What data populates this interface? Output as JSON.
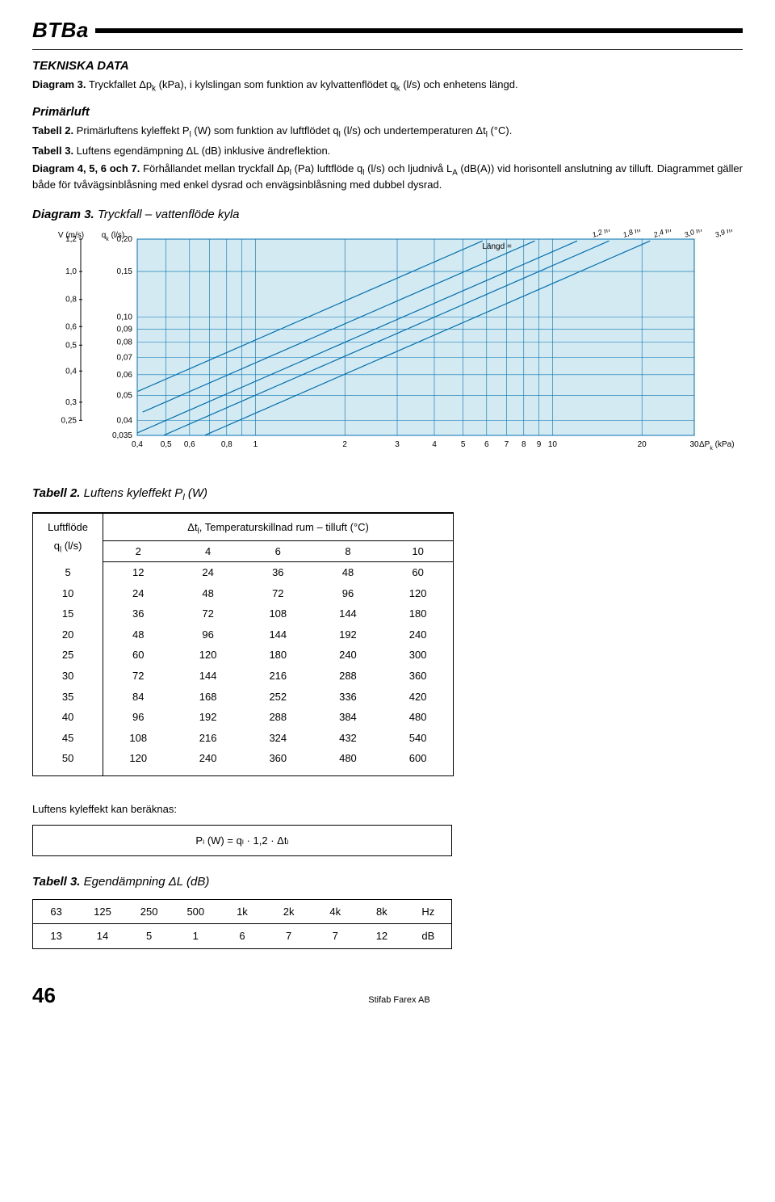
{
  "doc_title": "BTBa",
  "section_technical": "TEKNISKA DATA",
  "para_diagram3": "Diagram 3.",
  "para_diagram3_text": " Tryckfallet Δp",
  "para_diagram3_sub1": "k",
  "para_diagram3_text2": " (kPa), i kylslingan som funktion av kylvattenflödet q",
  "para_diagram3_sub2": "k",
  "para_diagram3_text3": " (l/s) och enhetens längd.",
  "primarluft": "Primärluft",
  "tab2label": "Tabell 2.",
  "tab2text": " Primärluftens kyleffekt P",
  "tab2sub": "l",
  "tab2text2": " (W) som funktion av luftflödet q",
  "tab2sub2": "l",
  "tab2text3": " (l/s) och undertemperaturen Δt",
  "tab2sub3": "l",
  "tab2text4": " (°C).",
  "tab3label": "Tabell 3.",
  "tab3text": " Luftens egendämpning ΔL (dB) inklusive änd­reflektion.",
  "diag4567label": "Diagram 4, 5, 6 och 7.",
  "diag4567text": " Förhållandet mellan tryckfall Δp",
  "diag4567sub1": "l",
  "diag4567text2": " (Pa) luftflöde q",
  "diag4567sub2": "l",
  "diag4567text3": " (l/s) och ljudnivå L",
  "diag4567sub3": "A",
  "diag4567text4": " (dB(A)) vid horisontell anslut­ning av tilluft. Diagrammet gäller både för tvåvägsinblåsning med enkel dysrad och envägsinblåsning med dubbel dysrad.",
  "chart": {
    "title_label": "Diagram 3.",
    "title_text": " Tryckfall – vattenflöde kyla",
    "y1_label": "V (m/s)",
    "y2_label": "q",
    "y2_sub": "k",
    "y2_unit": " (l/s)",
    "length_label": "Längd =",
    "x_axis_right_label": "ΔP",
    "x_axis_right_sub": "k",
    "x_axis_right_unit": " (kPa)",
    "y1_ticks": [
      "1,2",
      "1,0",
      "0,8",
      "0,6",
      "0,5",
      "0,4",
      "0,3",
      "0,25"
    ],
    "y2_ticks": [
      "0,20",
      "0,15",
      "0,10",
      "0,09",
      "0,08",
      "0,07",
      "0,06",
      "0,05",
      "0,04",
      "0,035"
    ],
    "x_ticks": [
      "0,4",
      "0,5",
      "0,6",
      "0,8",
      "1",
      "2",
      "3",
      "4",
      "5",
      "6",
      "7",
      "8",
      "9",
      "10",
      "20",
      "30"
    ],
    "lines": [
      "1,2 m",
      "1,8 m",
      "2,4 m",
      "3,0 m",
      "3,9 m"
    ],
    "colors": {
      "bg": "#d3eaf2",
      "grid": "#0070b0",
      "line": "#0070b0",
      "border": "#0070b0"
    }
  },
  "table2": {
    "title_label": "Tabell 2.",
    "title_text": " Luftens kyleffekt P",
    "title_sub": "l",
    "title_text2": " (W)",
    "col1_header1": "Luftflöde",
    "col1_header2": "q",
    "col1_header2_sub": "l",
    "col1_header2_unit": " (l/s)",
    "span_header": "Δt",
    "span_header_sub": "l",
    "span_header_text": ", Temperaturskillnad rum – tilluft (°C)",
    "col_headers": [
      "2",
      "4",
      "6",
      "8",
      "10"
    ],
    "rows": [
      [
        "5",
        "12",
        "24",
        "36",
        "48",
        "60"
      ],
      [
        "10",
        "24",
        "48",
        "72",
        "96",
        "120"
      ],
      [
        "15",
        "36",
        "72",
        "108",
        "144",
        "180"
      ],
      [
        "20",
        "48",
        "96",
        "144",
        "192",
        "240"
      ],
      [
        "25",
        "60",
        "120",
        "180",
        "240",
        "300"
      ],
      [
        "30",
        "72",
        "144",
        "216",
        "288",
        "360"
      ],
      [
        "35",
        "84",
        "168",
        "252",
        "336",
        "420"
      ],
      [
        "40",
        "96",
        "192",
        "288",
        "384",
        "480"
      ],
      [
        "45",
        "108",
        "216",
        "324",
        "432",
        "540"
      ],
      [
        "50",
        "120",
        "240",
        "360",
        "480",
        "600"
      ]
    ]
  },
  "calc_label": "Luftens kyleffekt kan beräknas:",
  "formula": "Pₗ (W) = qₗ · 1,2 · Δtₗ",
  "table3": {
    "title_label": "Tabell 3.",
    "title_text": " Egendämpning ΔL (dB)",
    "row1": [
      "63",
      "125",
      "250",
      "500",
      "1k",
      "2k",
      "4k",
      "8k",
      "Hz"
    ],
    "row2": [
      "13",
      "14",
      "5",
      "1",
      "6",
      "7",
      "7",
      "12",
      "dB"
    ]
  },
  "footer": {
    "page": "46",
    "company": "Stifab Farex AB"
  }
}
